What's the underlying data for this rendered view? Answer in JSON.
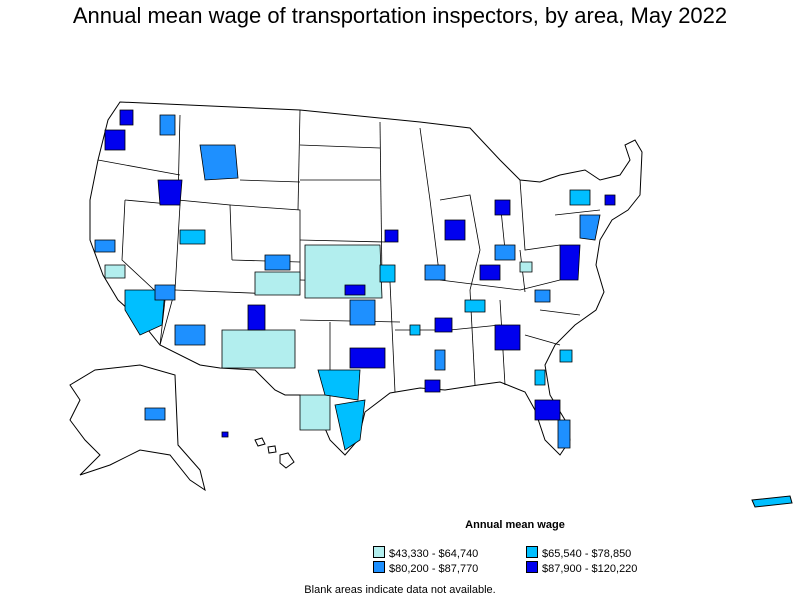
{
  "title": "Annual mean wage of transportation inspectors, by area, May 2022",
  "legend": {
    "title": "Annual mean wage",
    "items": [
      {
        "label": "$43,330 - $64,740",
        "color": "#b2eeee"
      },
      {
        "label": "$65,540 - $78,850",
        "color": "#00bfff"
      },
      {
        "label": "$80,200 - $87,770",
        "color": "#1e90ff"
      },
      {
        "label": "$87,900 - $120,220",
        "color": "#0000ee"
      }
    ]
  },
  "footnote": "Blank areas indicate data not available."
}
